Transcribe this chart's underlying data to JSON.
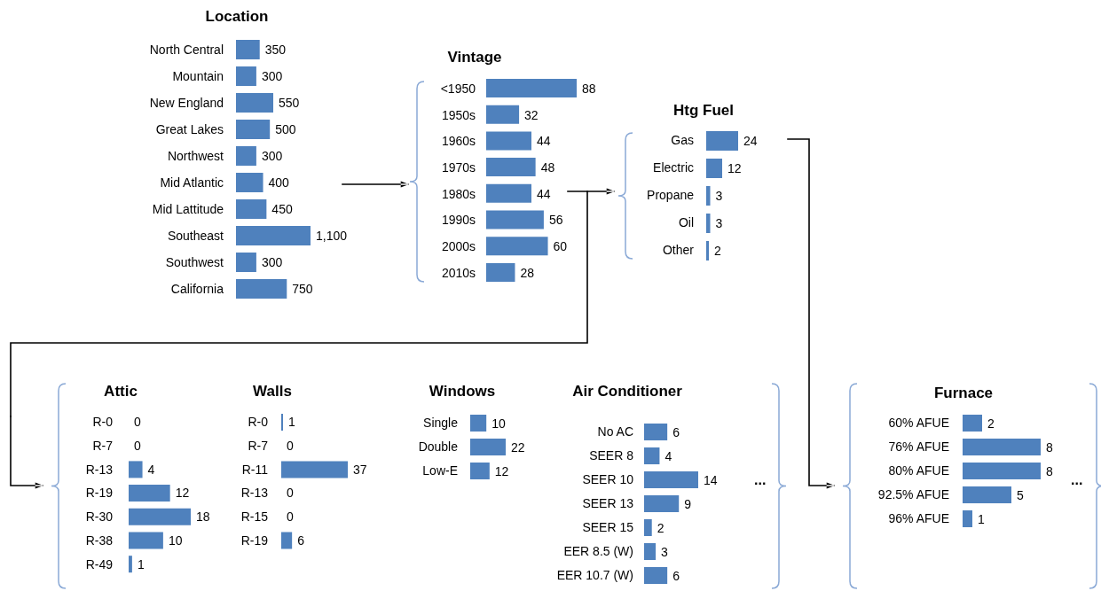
{
  "chart_data": [
    {
      "type": "bar",
      "orientation": "horizontal",
      "title": "Location",
      "categories": [
        "North Central",
        "Mountain",
        "New England",
        "Great Lakes",
        "Northwest",
        "Mid Atlantic",
        "Mid Lattitude",
        "Southeast",
        "Southwest",
        "California"
      ],
      "values": [
        350,
        300,
        550,
        500,
        300,
        400,
        450,
        1100,
        300,
        750
      ],
      "value_labels": [
        "350",
        "300",
        "550",
        "500",
        "300",
        "400",
        "450",
        "1,100",
        "300",
        "750"
      ],
      "color": "#4f81bd",
      "tick_labels": "y"
    },
    {
      "type": "bar",
      "orientation": "horizontal",
      "title": "Vintage",
      "categories": [
        "<1950",
        "1950s",
        "1960s",
        "1970s",
        "1980s",
        "1990s",
        "2000s",
        "2010s"
      ],
      "values": [
        88,
        32,
        44,
        48,
        44,
        56,
        60,
        28
      ],
      "color": "#4f81bd",
      "data_labels": true,
      "tick_labels": "y"
    },
    {
      "type": "bar",
      "orientation": "horizontal",
      "title": "Htg Fuel",
      "categories": [
        "Gas",
        "Electric",
        "Propane",
        "Oil",
        "Other"
      ],
      "values": [
        24,
        12,
        3,
        3,
        2
      ],
      "color": "#4f81bd",
      "data_labels": true,
      "tick_labels": "y"
    },
    {
      "type": "bar",
      "orientation": "horizontal",
      "title": "Attic",
      "categories": [
        "R-0",
        "R-7",
        "R-13",
        "R-19",
        "R-30",
        "R-38",
        "R-49"
      ],
      "values": [
        0,
        0,
        4,
        12,
        18,
        10,
        1
      ],
      "color": "#4f81bd",
      "data_labels": true,
      "tick_labels": "y"
    },
    {
      "type": "bar",
      "orientation": "horizontal",
      "title": "Walls",
      "categories": [
        "R-0",
        "R-7",
        "R-11",
        "R-13",
        "R-15",
        "R-19"
      ],
      "values": [
        1,
        0,
        37,
        0,
        0,
        6
      ],
      "color": "#4f81bd",
      "data_labels": true,
      "tick_labels": "y"
    },
    {
      "type": "bar",
      "orientation": "horizontal",
      "title": "Windows",
      "categories": [
        "Single",
        "Double",
        "Low-E"
      ],
      "values": [
        10,
        22,
        12
      ],
      "color": "#4f81bd",
      "data_labels": true,
      "tick_labels": "y"
    },
    {
      "type": "bar",
      "orientation": "horizontal",
      "title": "Air Conditioner",
      "categories": [
        "No AC",
        "SEER 8",
        "SEER 10",
        "SEER 13",
        "SEER 15",
        "EER 8.5 (W)",
        "EER 10.7 (W)"
      ],
      "values": [
        6,
        4,
        14,
        9,
        2,
        3,
        6
      ],
      "color": "#4f81bd",
      "data_labels": true,
      "tick_labels": "y",
      "annotations": [
        "..."
      ]
    },
    {
      "type": "bar",
      "orientation": "horizontal",
      "title": "Furnace",
      "categories": [
        "60% AFUE",
        "76% AFUE",
        "80% AFUE",
        "92.5% AFUE",
        "96% AFUE"
      ],
      "values": [
        2,
        8,
        8,
        5,
        1
      ],
      "color": "#4f81bd",
      "data_labels": true,
      "tick_labels": "y",
      "annotations": [
        "..."
      ]
    }
  ]
}
